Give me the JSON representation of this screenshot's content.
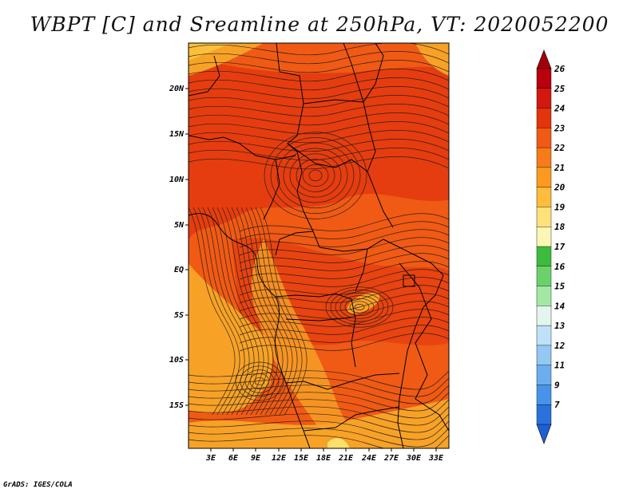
{
  "title": "WBPT [C] and Sreamline at 250hPa, VT: 2020052200",
  "footer": "GrADS: IGES/COLA",
  "map": {
    "lon_labels": [
      "3E",
      "6E",
      "9E",
      "12E",
      "15E",
      "18E",
      "21E",
      "24E",
      "27E",
      "30E",
      "33E"
    ],
    "lat_labels": [
      "20N",
      "15N",
      "10N",
      "5N",
      "EQ",
      "5S",
      "10S",
      "15S"
    ],
    "colors": {
      "base": "#f05a14",
      "warm_dark": "#e2340d",
      "light": "#f7a227",
      "lighter": "#fbbf3c",
      "yellow": "#fde06a",
      "streamline": "#1a1a1a",
      "border": "#000000"
    }
  },
  "colorbar": {
    "labels": [
      "26",
      "25",
      "24",
      "23",
      "22",
      "21",
      "20",
      "19",
      "18",
      "17",
      "16",
      "15",
      "14",
      "13",
      "12",
      "11",
      "9",
      "7"
    ],
    "colors": [
      "#b8000f",
      "#d3180f",
      "#e3340c",
      "#f05a14",
      "#f77b18",
      "#fb9a1f",
      "#fdbc3a",
      "#fde27a",
      "#fbf6b3",
      "#3cbc3c",
      "#6bd26b",
      "#a5e6a5",
      "#e2f5ef",
      "#bfe1f7",
      "#94c8f3",
      "#6aaeef",
      "#4793e8",
      "#2a71dc"
    ],
    "top_arrow_color": "#a3000b",
    "bottom_arrow_color": "#1f5fd6"
  }
}
